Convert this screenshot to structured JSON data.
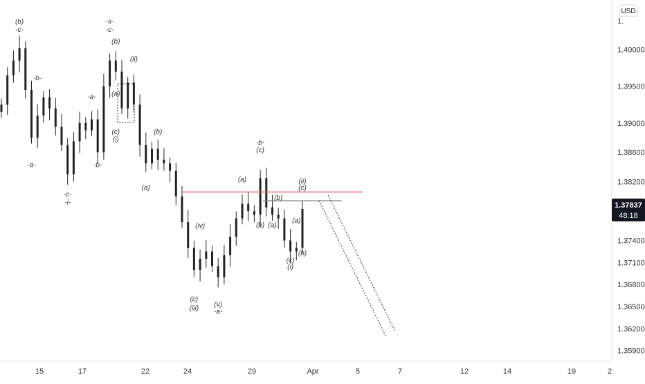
{
  "chart_data": {
    "type": "candlestick",
    "currency_badge": "USD",
    "x_ticks": [
      "15",
      "17",
      "22",
      "24",
      "29",
      "Apr",
      "5",
      "7",
      "12",
      "14",
      "19",
      "2"
    ],
    "y_ticks": [
      "1.40000",
      "1.39500",
      "1.39000",
      "1.38600",
      "1.38200",
      "1.37400",
      "1.37100",
      "1.36800",
      "1.36500",
      "1.36200",
      "1.35900"
    ],
    "price_axis_top_partial": "1.",
    "ylim": [
      1.3585,
      1.406
    ],
    "last_price": "1.37837",
    "countdown": "48:18",
    "colors": {
      "candles": "#222222",
      "resistance_line": "#e8746c",
      "last_price_badge": "#131722",
      "projection_lines": "#333333"
    },
    "wave_labels": [
      {
        "text": "(b)",
        "value": 1.4035,
        "bar": 3
      },
      {
        "text": "-c-",
        "value": 1.4024,
        "bar": 3
      },
      {
        "text": "-b-",
        "value": 1.3958,
        "bar": 6
      },
      {
        "text": "-a-",
        "value": 1.384,
        "bar": 5
      },
      {
        "text": "-c-",
        "value": 1.38,
        "bar": 11
      },
      {
        "text": "-i-",
        "value": 1.3789,
        "bar": 11
      },
      {
        "text": "-a-",
        "value": 1.3933,
        "bar": 15
      },
      {
        "text": "-b-",
        "value": 1.384,
        "bar": 16
      },
      {
        "text": "-ii-",
        "value": 1.4035,
        "bar": 18
      },
      {
        "text": "-c-",
        "value": 1.4024,
        "bar": 18
      },
      {
        "text": "(b)",
        "value": 1.4008,
        "bar": 19
      },
      {
        "text": "(ii)",
        "value": 1.3984,
        "bar": 22
      },
      {
        "text": "(a)",
        "value": 1.3937,
        "bar": 19
      },
      {
        "text": "(c)",
        "value": 1.3885,
        "bar": 19
      },
      {
        "text": "(i)",
        "value": 1.3875,
        "bar": 19
      },
      {
        "text": "(b)",
        "value": 1.3885,
        "bar": 26
      },
      {
        "text": "(a)",
        "value": 1.3809,
        "bar": 24
      },
      {
        "text": "(iv)",
        "value": 1.3757,
        "bar": 33
      },
      {
        "text": "(c)",
        "value": 1.3657,
        "bar": 32
      },
      {
        "text": "(iii)",
        "value": 1.3645,
        "bar": 32
      },
      {
        "text": "(v)",
        "value": 1.365,
        "bar": 36
      },
      {
        "text": "-a-",
        "value": 1.364,
        "bar": 36
      },
      {
        "text": "(a)",
        "value": 1.382,
        "bar": 40
      },
      {
        "text": "-b-",
        "value": 1.387,
        "bar": 43
      },
      {
        "text": "(c)",
        "value": 1.386,
        "bar": 43
      },
      {
        "text": "(b)",
        "value": 1.3795,
        "bar": 46
      },
      {
        "text": "(b)",
        "value": 1.3758,
        "bar": 43
      },
      {
        "text": "(a)",
        "value": 1.3758,
        "bar": 45
      },
      {
        "text": "(a)",
        "value": 1.3764,
        "bar": 49
      },
      {
        "text": "(c)",
        "value": 1.371,
        "bar": 48
      },
      {
        "text": "(i)",
        "value": 1.3701,
        "bar": 48
      },
      {
        "text": "(b)",
        "value": 1.372,
        "bar": 50
      },
      {
        "text": "(ii)",
        "value": 1.3818,
        "bar": 50
      },
      {
        "text": "(c)",
        "value": 1.3809,
        "bar": 50
      }
    ],
    "resistance_level": 1.3806,
    "grey_level": 1.3794,
    "candles_close": [
      1.3925,
      1.3965,
      1.3985,
      1.4002,
      1.3945,
      1.388,
      1.391,
      1.3935,
      1.392,
      1.3895,
      1.387,
      1.383,
      1.3875,
      1.39,
      1.389,
      1.3905,
      1.386,
      1.395,
      1.3985,
      1.397,
      1.392,
      1.3955,
      1.3925,
      1.387,
      1.3845,
      1.3865,
      1.385,
      1.3845,
      1.3835,
      1.38,
      1.3765,
      1.373,
      1.37,
      1.3715,
      1.3725,
      1.3705,
      1.369,
      1.372,
      1.3745,
      1.377,
      1.379,
      1.378,
      1.3775,
      1.3825,
      1.3785,
      1.3775,
      1.377,
      1.374,
      1.3725,
      1.373,
      1.3783
    ]
  }
}
